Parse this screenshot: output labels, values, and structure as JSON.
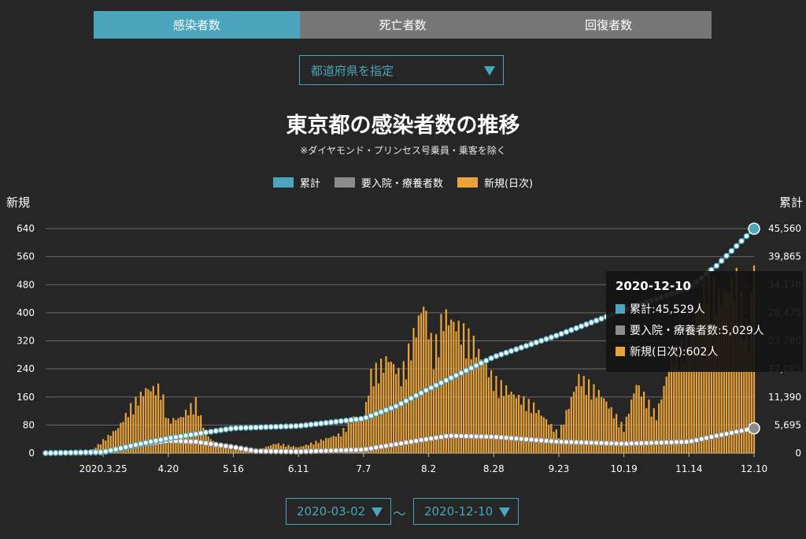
{
  "tabs": [
    {
      "label": "感染者数",
      "active": true
    },
    {
      "label": "死亡者数",
      "active": false
    },
    {
      "label": "回復者数",
      "active": false
    }
  ],
  "prefecture_select": {
    "value": "都道府県を指定"
  },
  "date_range": {
    "start": "2020-03-02",
    "separator": "〜",
    "end": "2020-12-10"
  },
  "tooltip": {
    "date": "2020-12-10",
    "rows": [
      {
        "text": "累計:45,529人",
        "color": "#4aa5bd"
      },
      {
        "text": "要入院・療養者数:5,029人",
        "color": "#8c8c8c"
      },
      {
        "text": "新規(日次):602人",
        "color": "#e8a33b"
      }
    ]
  },
  "colors": {
    "cumulative": "#4aa5bd",
    "hospitalized": "#8c8c8c",
    "new": "#e8a33b",
    "active_tab": "#4aa5bd",
    "inactive_tab": "#777777"
  },
  "chart_data": {
    "type": "bar",
    "title": "東京都の感染者数の推移",
    "subtitle": "※ダイヤモンド・プリンセス号乗員・乗客を除く",
    "legend": [
      "累計",
      "要入院・療養者数",
      "新規(日次)"
    ],
    "legend_position": "top-center",
    "ylabel_left": "新規",
    "ylabel_right": "累計",
    "y_left_ticks": [
      "0",
      "80",
      "160",
      "240",
      "320",
      "400",
      "480",
      "560",
      "640"
    ],
    "y_right_ticks": [
      "0",
      "5,695",
      "11,390",
      "17,085",
      "22,780",
      "28,475",
      "34,170",
      "39,865",
      "45,560"
    ],
    "ylim_left": [
      0,
      640
    ],
    "ylim_right": [
      0,
      45560
    ],
    "x_ticks": [
      "2020.3.25",
      "4.20",
      "5.16",
      "6.11",
      "7.7",
      "8.2",
      "8.28",
      "9.23",
      "10.19",
      "11.14",
      "12.10"
    ],
    "x_range": [
      "2020-03-02",
      "2020-12-10"
    ],
    "grid": true,
    "series": [
      {
        "name": "新規(日次)",
        "kind": "bar",
        "axis": "left",
        "points": [
          [
            "2020-03-02",
            0
          ],
          [
            "2020-03-20",
            5
          ],
          [
            "2020-03-25",
            40
          ],
          [
            "2020-03-31",
            78
          ],
          [
            "2020-04-05",
            143
          ],
          [
            "2020-04-11",
            197
          ],
          [
            "2020-04-17",
            201
          ],
          [
            "2020-04-20",
            100
          ],
          [
            "2020-04-25",
            110
          ],
          [
            "2020-05-01",
            160
          ],
          [
            "2020-05-05",
            60
          ],
          [
            "2020-05-10",
            20
          ],
          [
            "2020-05-16",
            10
          ],
          [
            "2020-05-25",
            8
          ],
          [
            "2020-06-02",
            30
          ],
          [
            "2020-06-11",
            18
          ],
          [
            "2020-06-20",
            40
          ],
          [
            "2020-06-28",
            60
          ],
          [
            "2020-07-02",
            107
          ],
          [
            "2020-07-07",
            106
          ],
          [
            "2020-07-10",
            243
          ],
          [
            "2020-07-17",
            293
          ],
          [
            "2020-07-22",
            238
          ],
          [
            "2020-07-31",
            463
          ],
          [
            "2020-08-04",
            309
          ],
          [
            "2020-08-08",
            429
          ],
          [
            "2020-08-14",
            389
          ],
          [
            "2020-08-20",
            339
          ],
          [
            "2020-08-28",
            226
          ],
          [
            "2020-09-05",
            181
          ],
          [
            "2020-09-13",
            146
          ],
          [
            "2020-09-23",
            59
          ],
          [
            "2020-10-01",
            235
          ],
          [
            "2020-10-10",
            180
          ],
          [
            "2020-10-19",
            78
          ],
          [
            "2020-10-24",
            215
          ],
          [
            "2020-11-01",
            116
          ],
          [
            "2020-11-07",
            294
          ],
          [
            "2020-11-14",
            352
          ],
          [
            "2020-11-21",
            539
          ],
          [
            "2020-11-26",
            481
          ],
          [
            "2020-12-03",
            533
          ],
          [
            "2020-12-08",
            352
          ],
          [
            "2020-12-10",
            602
          ]
        ]
      },
      {
        "name": "累計",
        "kind": "line",
        "axis": "right",
        "points": [
          [
            "2020-03-02",
            0
          ],
          [
            "2020-03-25",
            212
          ],
          [
            "2020-04-10",
            2000
          ],
          [
            "2020-04-20",
            3000
          ],
          [
            "2020-05-16",
            5050
          ],
          [
            "2020-06-11",
            5500
          ],
          [
            "2020-07-07",
            7000
          ],
          [
            "2020-07-20",
            9500
          ],
          [
            "2020-08-02",
            13000
          ],
          [
            "2020-08-28",
            19500
          ],
          [
            "2020-09-23",
            24000
          ],
          [
            "2020-10-19",
            29000
          ],
          [
            "2020-11-14",
            33500
          ],
          [
            "2020-11-25",
            38000
          ],
          [
            "2020-12-10",
            45529
          ]
        ]
      },
      {
        "name": "要入院・療養者数",
        "kind": "line",
        "axis": "right",
        "points": [
          [
            "2020-03-02",
            0
          ],
          [
            "2020-03-25",
            150
          ],
          [
            "2020-04-10",
            1800
          ],
          [
            "2020-04-20",
            2500
          ],
          [
            "2020-05-01",
            2300
          ],
          [
            "2020-05-16",
            1200
          ],
          [
            "2020-05-25",
            400
          ],
          [
            "2020-06-11",
            300
          ],
          [
            "2020-07-07",
            700
          ],
          [
            "2020-07-20",
            1800
          ],
          [
            "2020-08-02",
            2900
          ],
          [
            "2020-08-10",
            3500
          ],
          [
            "2020-08-28",
            3300
          ],
          [
            "2020-09-23",
            2300
          ],
          [
            "2020-10-19",
            1900
          ],
          [
            "2020-11-14",
            2300
          ],
          [
            "2020-11-25",
            3500
          ],
          [
            "2020-12-10",
            5029
          ]
        ]
      }
    ]
  }
}
